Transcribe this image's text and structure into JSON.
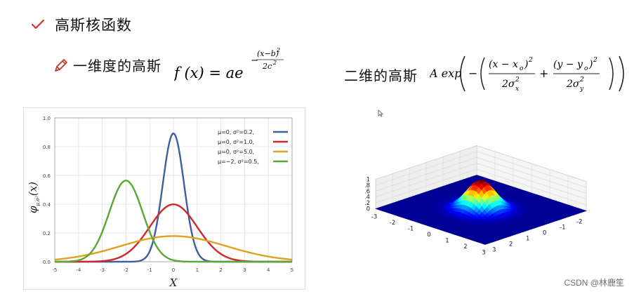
{
  "heading": {
    "text": "高斯核函数",
    "icon": "check-icon",
    "icon_color": "#c0392b"
  },
  "row1": {
    "label": "一维度的高斯",
    "icon": "pencil-icon"
  },
  "formula1": {
    "lhs": "f (x) = ae",
    "exp_num": "(x−b)",
    "exp_sup": "2",
    "exp_den": "2c",
    "exp_den_sup": "2",
    "exp_sign": "−"
  },
  "row2": {
    "label": "二维的高斯"
  },
  "formula2": {
    "A": "A exp",
    "minus": "−",
    "num1": "(x − x",
    "num1_sub": "o",
    "num1_close": ")",
    "num1_sup": "2",
    "den1": "2σ",
    "den1_sup": "2",
    "den1_sub": "x",
    "plus": "+",
    "num2": "(y − y",
    "num2_sub": "o",
    "num2_close": ")",
    "num2_sup": "2",
    "den2": "2σ",
    "den2_sup": "2",
    "den2_sub": "y"
  },
  "chart_data": [
    {
      "type": "line",
      "ylabel": "φ",
      "ylabel_sub": "μ,σ²",
      "ylabel_tail": "(x)",
      "xlabel": "X",
      "xlim": [
        -5,
        5
      ],
      "ylim": [
        0,
        1.0
      ],
      "xticks": [
        "-5",
        "-4",
        "-3",
        "-2",
        "-1",
        "0",
        "1",
        "2",
        "3",
        "4",
        "5"
      ],
      "yticks": [
        "0.0",
        "0.2",
        "0.4",
        "0.6",
        "0.8",
        "1.0"
      ],
      "grid": true,
      "legend_position": "top-right",
      "series": [
        {
          "name": "μ=0,   σ²=0.2,",
          "mu": 0,
          "var": 0.2,
          "color": "#3b5fa0"
        },
        {
          "name": "μ=0,   σ²=1.0,",
          "mu": 0,
          "var": 1.0,
          "color": "#d1262b"
        },
        {
          "name": "μ=0,   σ²=5.0,",
          "mu": 0,
          "var": 5.0,
          "color": "#e0a020"
        },
        {
          "name": "μ=−2,  σ²=0.5,",
          "mu": -2,
          "var": 0.5,
          "color": "#5aa832"
        }
      ]
    },
    {
      "type": "surface",
      "zticks": [
        "0",
        "0.2",
        "0.4",
        "0.6",
        "0.8",
        "1"
      ],
      "xticks": [
        "-3",
        "-2",
        "-1",
        "0",
        "1",
        "2",
        "3"
      ],
      "yticks": [
        "-3",
        "-2",
        "-1",
        "0",
        "1",
        "2",
        "3"
      ],
      "xlim": [
        -3,
        3
      ],
      "ylim": [
        -3,
        3
      ],
      "zlim": [
        0,
        1
      ]
    }
  ],
  "watermark": "CSDN @林鹿笙"
}
